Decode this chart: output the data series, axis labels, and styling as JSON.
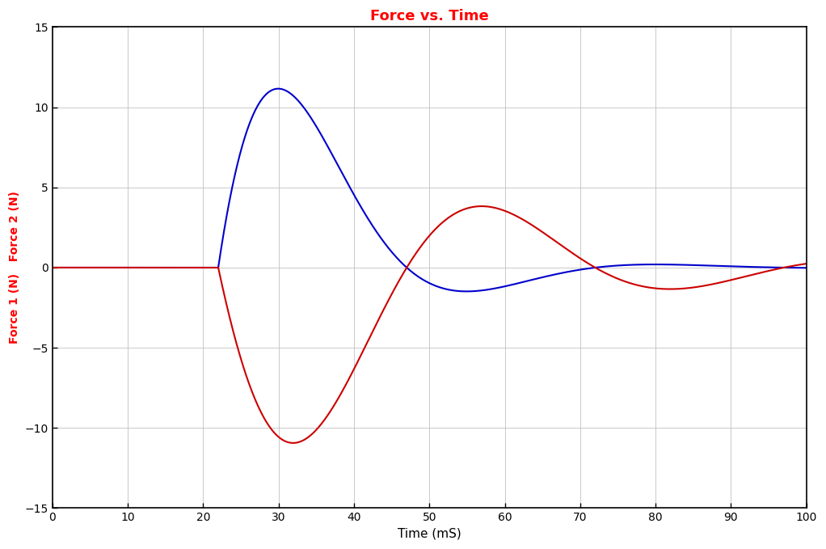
{
  "title": "Force vs. Time",
  "title_color": "#ff0000",
  "xlabel": "Time (mS)",
  "ylabel": "Force 1 (N)   Force 2 (N)",
  "ylabel_color": "#ff0000",
  "xlim": [
    0,
    100
  ],
  "ylim": [
    -15,
    15
  ],
  "xticks": [
    0,
    10,
    20,
    30,
    40,
    50,
    60,
    70,
    80,
    90,
    100
  ],
  "yticks": [
    -15,
    -10,
    -5,
    0,
    5,
    10,
    15
  ],
  "background_color": "#ffffff",
  "grid_color": "#bbbbbb",
  "blue_color": "#0000cc",
  "red_color": "#cc0000",
  "line_width": 1.5,
  "figsize": [
    10.22,
    6.79
  ],
  "dpi": 100
}
